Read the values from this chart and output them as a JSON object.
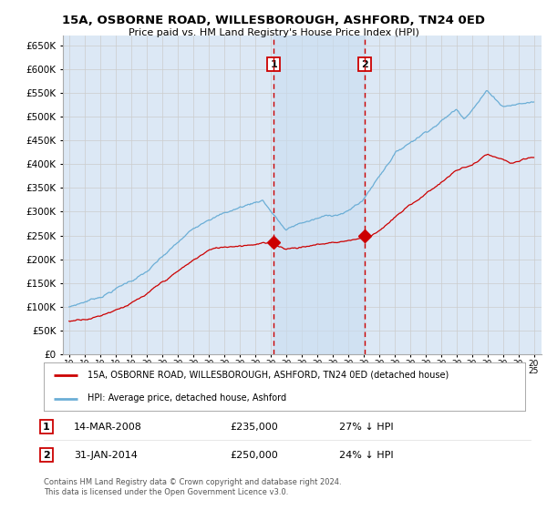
{
  "title": "15A, OSBORNE ROAD, WILLESBOROUGH, ASHFORD, TN24 0ED",
  "subtitle": "Price paid vs. HM Land Registry's House Price Index (HPI)",
  "legend_line1": "15A, OSBORNE ROAD, WILLESBOROUGH, ASHFORD, TN24 0ED (detached house)",
  "legend_line2": "HPI: Average price, detached house, Ashford",
  "transaction1_date": "14-MAR-2008",
  "transaction1_price": "£235,000",
  "transaction1_hpi": "27% ↓ HPI",
  "transaction2_date": "31-JAN-2014",
  "transaction2_price": "£250,000",
  "transaction2_hpi": "24% ↓ HPI",
  "copyright": "Contains HM Land Registry data © Crown copyright and database right 2024.\nThis data is licensed under the Open Government Licence v3.0.",
  "hpi_color": "#6baed6",
  "price_color": "#cc0000",
  "vline_color": "#cc0000",
  "grid_color": "#cccccc",
  "bg_color": "#ffffff",
  "plot_bg_color": "#dce8f5",
  "ylim_min": 0,
  "ylim_max": 670000,
  "yticks": [
    0,
    50000,
    100000,
    150000,
    200000,
    250000,
    300000,
    350000,
    400000,
    450000,
    500000,
    550000,
    600000,
    650000
  ],
  "transaction1_year": 2008.2,
  "transaction2_year": 2014.08,
  "marker1_value": 235000,
  "marker2_value": 250000
}
